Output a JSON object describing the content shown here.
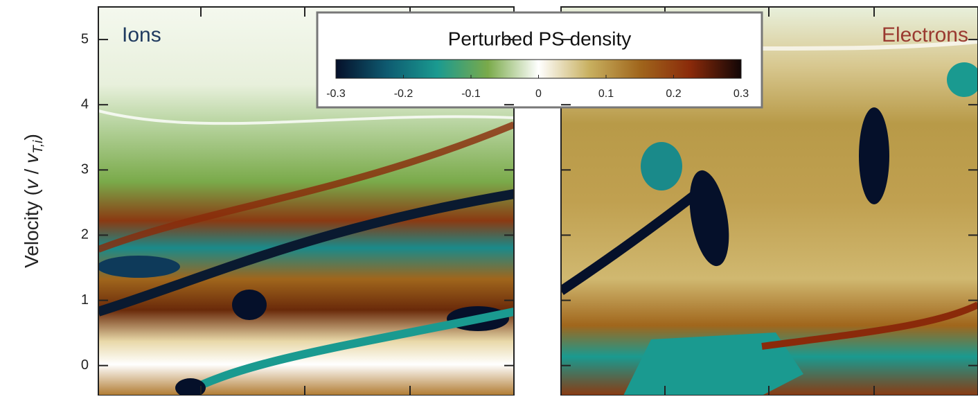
{
  "chart_data": {
    "type": "phase-space",
    "ylabel_parts": [
      "Velocity (",
      "v",
      " / ",
      "v",
      "T,i",
      ")"
    ],
    "ylim": [
      -0.46,
      5.5
    ],
    "yticks": [
      0,
      1,
      2,
      3,
      4,
      5
    ],
    "panels": [
      {
        "label": "Ions",
        "color": "#1f3a5f"
      },
      {
        "label": "Electrons",
        "color": "#9a3a30"
      }
    ],
    "colorbar": {
      "title": "Perturbed PS density",
      "clim": [
        -0.3,
        0.3
      ],
      "ticks": [
        -0.3,
        -0.2,
        -0.1,
        0,
        0.1,
        0.2,
        0.3
      ],
      "colormap": [
        "#05102a",
        "#0e5a70",
        "#1a9a90",
        "#7aaa4a",
        "#ffffff",
        "#c8b060",
        "#a0661c",
        "#8a2a0a",
        "#120606"
      ]
    }
  }
}
